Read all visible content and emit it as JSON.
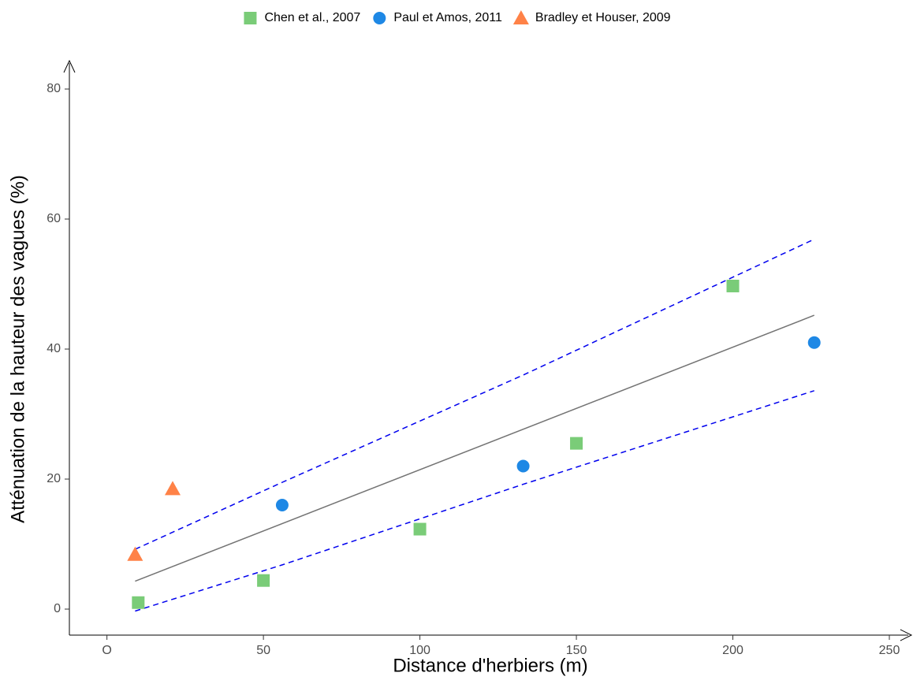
{
  "chart_data": {
    "type": "scatter",
    "title": "",
    "xlabel": "Distance d'herbiers (m)",
    "ylabel": "Atténuation de la hauteur des vagues (%)",
    "xlim": [
      -12,
      250
    ],
    "ylim": [
      -4,
      84
    ],
    "grid": false,
    "legend_position": "top",
    "x_ticks": [
      {
        "value": 0,
        "label": "O"
      },
      {
        "value": 50,
        "label": "50"
      },
      {
        "value": 100,
        "label": "100"
      },
      {
        "value": 150,
        "label": "150"
      },
      {
        "value": 200,
        "label": "200"
      },
      {
        "value": 250,
        "label": "250"
      }
    ],
    "y_ticks": [
      {
        "value": 0,
        "label": "0"
      },
      {
        "value": 20,
        "label": "20"
      },
      {
        "value": 40,
        "label": "40"
      },
      {
        "value": 60,
        "label": "60"
      },
      {
        "value": 80,
        "label": "80"
      }
    ],
    "series": [
      {
        "name": "Chen et al., 2007",
        "marker": "square",
        "color": "#7acc78",
        "points": [
          {
            "x": 10,
            "y": 1
          },
          {
            "x": 50,
            "y": 4.4
          },
          {
            "x": 100,
            "y": 12.3
          },
          {
            "x": 150,
            "y": 25.5
          },
          {
            "x": 200,
            "y": 49.7
          }
        ]
      },
      {
        "name": "Paul et Amos, 2011",
        "marker": "circle",
        "color": "#1e88e5",
        "points": [
          {
            "x": 56,
            "y": 16
          },
          {
            "x": 133,
            "y": 22
          },
          {
            "x": 226,
            "y": 41
          }
        ]
      },
      {
        "name": "Bradley et Houser, 2009",
        "marker": "triangle",
        "color": "#ff8247",
        "points": [
          {
            "x": 9,
            "y": 8.4
          },
          {
            "x": 21,
            "y": 18.5
          }
        ]
      }
    ],
    "fit_line": {
      "color": "#737373",
      "style": "solid",
      "points": [
        [
          9,
          4.3
        ],
        [
          226,
          45.2
        ]
      ]
    },
    "confidence_band": {
      "color": "#0000ee",
      "style": "dashed",
      "upper": [
        [
          9,
          9.2
        ],
        [
          56,
          19.5
        ],
        [
          133,
          36
        ],
        [
          226,
          56.9
        ]
      ],
      "lower": [
        [
          9,
          -0.3
        ],
        [
          56,
          6.8
        ],
        [
          133,
          19.2
        ],
        [
          226,
          33.6
        ]
      ]
    }
  }
}
